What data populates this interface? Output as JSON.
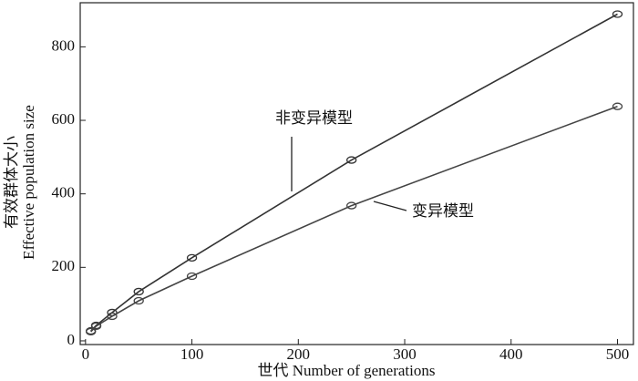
{
  "chart_data": {
    "type": "line",
    "xlabel": "世代 Number of generations",
    "ylabel": [
      "有效群体大小",
      "Effective population size"
    ],
    "x": [
      5,
      10,
      25,
      50,
      100,
      250,
      500
    ],
    "series": [
      {
        "name": "非变异模型",
        "color": "#333333",
        "values": [
          27,
          42,
          77,
          134,
          226,
          492,
          889
        ]
      },
      {
        "name": "变异模型",
        "color": "#444444",
        "values": [
          25,
          40,
          67,
          109,
          176,
          368,
          638
        ]
      }
    ],
    "xlim": [
      -5,
      515
    ],
    "ylim": [
      -10,
      920
    ],
    "xticks": [
      0,
      100,
      200,
      300,
      400,
      500
    ],
    "yticks": [
      0,
      200,
      400,
      600,
      800
    ],
    "grid": false
  }
}
